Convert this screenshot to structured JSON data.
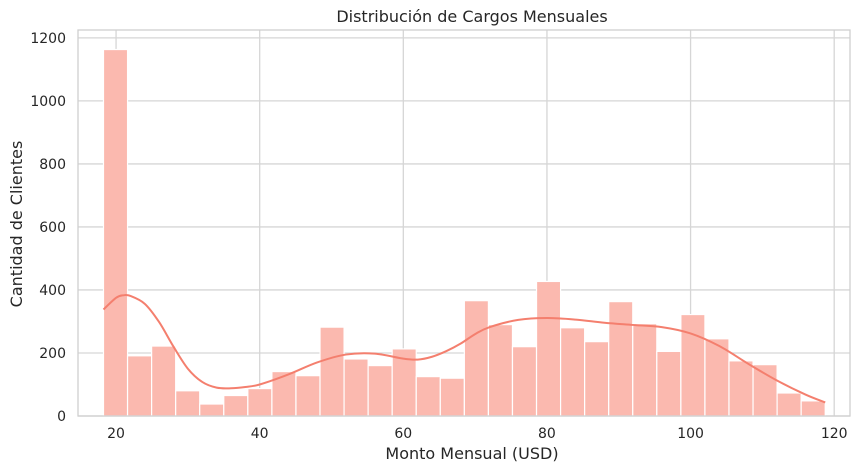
{
  "chart_data": {
    "type": "bar",
    "subtype": "histogram-with-kde",
    "title": "Distribución de Cargos Mensuales",
    "xlabel": "Monto Mensual (USD)",
    "ylabel": "Cantidad de Clientes",
    "xlim": [
      14.7,
      122.2
    ],
    "ylim": [
      0,
      1225
    ],
    "xticks": [
      20,
      40,
      60,
      80,
      100,
      120
    ],
    "yticks": [
      0,
      200,
      400,
      600,
      800,
      1000,
      1200
    ],
    "grid": true,
    "legend": "none",
    "colors": {
      "bar": "#fbb9af",
      "kde": "#f47f6e",
      "grid": "#d6d6d6",
      "frame": "#cfcfcf"
    },
    "bins": {
      "start": 18.25,
      "width": 3.35,
      "counts": [
        1163,
        191,
        222,
        80,
        38,
        65,
        87,
        141,
        128,
        282,
        181,
        160,
        213,
        125,
        120,
        366,
        290,
        220,
        427,
        280,
        236,
        363,
        293,
        205,
        322,
        245,
        175,
        163,
        73,
        48
      ]
    },
    "kde": {
      "x": [
        18.25,
        20,
        21,
        22,
        24,
        26,
        28,
        30,
        32,
        34,
        36,
        38,
        40,
        44,
        48,
        52,
        56,
        60,
        62,
        64,
        66,
        68,
        70,
        72,
        76,
        80,
        84,
        88,
        92,
        96,
        100,
        104,
        108,
        112,
        116,
        118.75
      ],
      "y": [
        338,
        375,
        383,
        381,
        356,
        298,
        220,
        150,
        108,
        90,
        88,
        92,
        100,
        132,
        170,
        195,
        198,
        182,
        179,
        188,
        206,
        230,
        260,
        282,
        305,
        311,
        306,
        296,
        289,
        282,
        262,
        222,
        166,
        113,
        68,
        43
      ]
    }
  }
}
